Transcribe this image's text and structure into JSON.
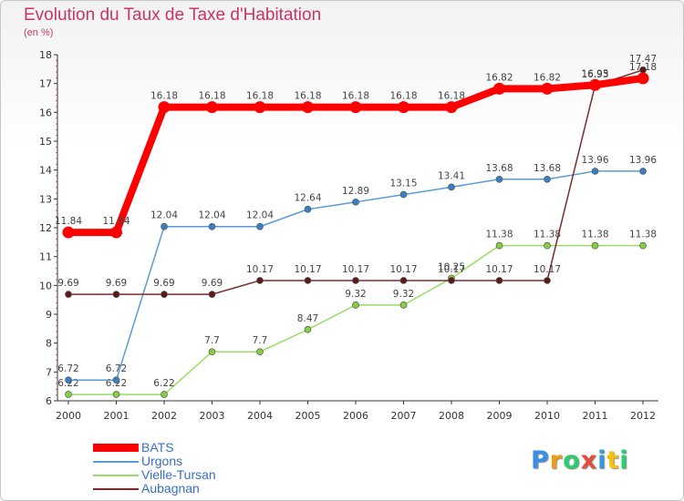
{
  "title": "Evolution du Taux de Taxe d'Habitation",
  "subtitle": "(en %)",
  "logo": {
    "text": "Proxiti",
    "letters": [
      "P",
      "r",
      "o",
      "x",
      "i",
      "t",
      "i"
    ],
    "colors": [
      "#3a8ee6",
      "#f39c12",
      "#2ecc71",
      "#e74c3c",
      "#3498db",
      "#f1c40f",
      "#2ecc71"
    ]
  },
  "legend": [
    {
      "label": "BATS",
      "color": "#ff0000"
    },
    {
      "label": "Urgons",
      "color": "#5b9bd5"
    },
    {
      "label": "Vielle-Tursan",
      "color": "#99dd66"
    },
    {
      "label": "Aubagnan",
      "color": "#7a2b2b"
    }
  ],
  "chart_data": {
    "type": "line",
    "title": "Evolution du Taux de Taxe d'Habitation",
    "ylabel": "(en %)",
    "xlabel": "",
    "ylim": [
      6,
      18
    ],
    "yticks": [
      6,
      7,
      8,
      9,
      10,
      11,
      12,
      13,
      14,
      15,
      16,
      17,
      18
    ],
    "categories": [
      "2000",
      "2001",
      "2002",
      "2003",
      "2004",
      "2005",
      "2006",
      "2007",
      "2008",
      "2009",
      "2010",
      "2011",
      "2012"
    ],
    "grid": false,
    "legend_position": "bottom-left",
    "series": [
      {
        "name": "Vielle-Tursan",
        "color": "#99dd66",
        "marker": "#88cc44",
        "values": [
          6.22,
          6.22,
          6.22,
          7.7,
          7.7,
          8.47,
          9.32,
          9.32,
          10.25,
          11.38,
          11.38,
          11.38,
          11.38
        ],
        "labels": [
          "6.22",
          "6.22",
          "6.22",
          "7.7",
          "7.7",
          "8.47",
          "9.32",
          "9.32",
          "10.25",
          "11.38",
          "11.38",
          "11.38",
          "11.38"
        ]
      },
      {
        "name": "Urgons",
        "color": "#5b9bd5",
        "marker": "#3a7fc4",
        "values": [
          6.72,
          6.72,
          12.04,
          12.04,
          12.04,
          12.64,
          12.89,
          13.15,
          13.41,
          13.68,
          13.68,
          13.96,
          13.96
        ],
        "labels": [
          "6.72",
          "6.72",
          "12.04",
          "12.04",
          "12.04",
          "12.64",
          "12.89",
          "13.15",
          "13.41",
          "13.68",
          "13.68",
          "13.96",
          "13.96"
        ]
      },
      {
        "name": "Aubagnan",
        "color": "#7a2b2b",
        "marker": "#5a1a1a",
        "values": [
          9.69,
          9.69,
          9.69,
          9.69,
          10.17,
          10.17,
          10.17,
          10.17,
          10.17,
          10.17,
          10.17,
          16.93,
          17.47
        ],
        "labels": [
          "9.69",
          "9.69",
          "9.69",
          "9.69",
          "10.17",
          "10.17",
          "10.17",
          "10.17",
          "10.17",
          "10.17",
          "10.17",
          "16.93",
          "17.47"
        ]
      },
      {
        "name": "BATS",
        "color": "#ff0000",
        "marker": "#ff0000",
        "values": [
          11.84,
          11.84,
          16.18,
          16.18,
          16.18,
          16.18,
          16.18,
          16.18,
          16.18,
          16.82,
          16.82,
          16.95,
          17.18
        ],
        "labels": [
          "11.84",
          "11.84",
          "16.18",
          "16.18",
          "16.18",
          "16.18",
          "16.18",
          "16.18",
          "16.18",
          "16.82",
          "16.82",
          "16.95",
          "17.18"
        ]
      }
    ]
  }
}
